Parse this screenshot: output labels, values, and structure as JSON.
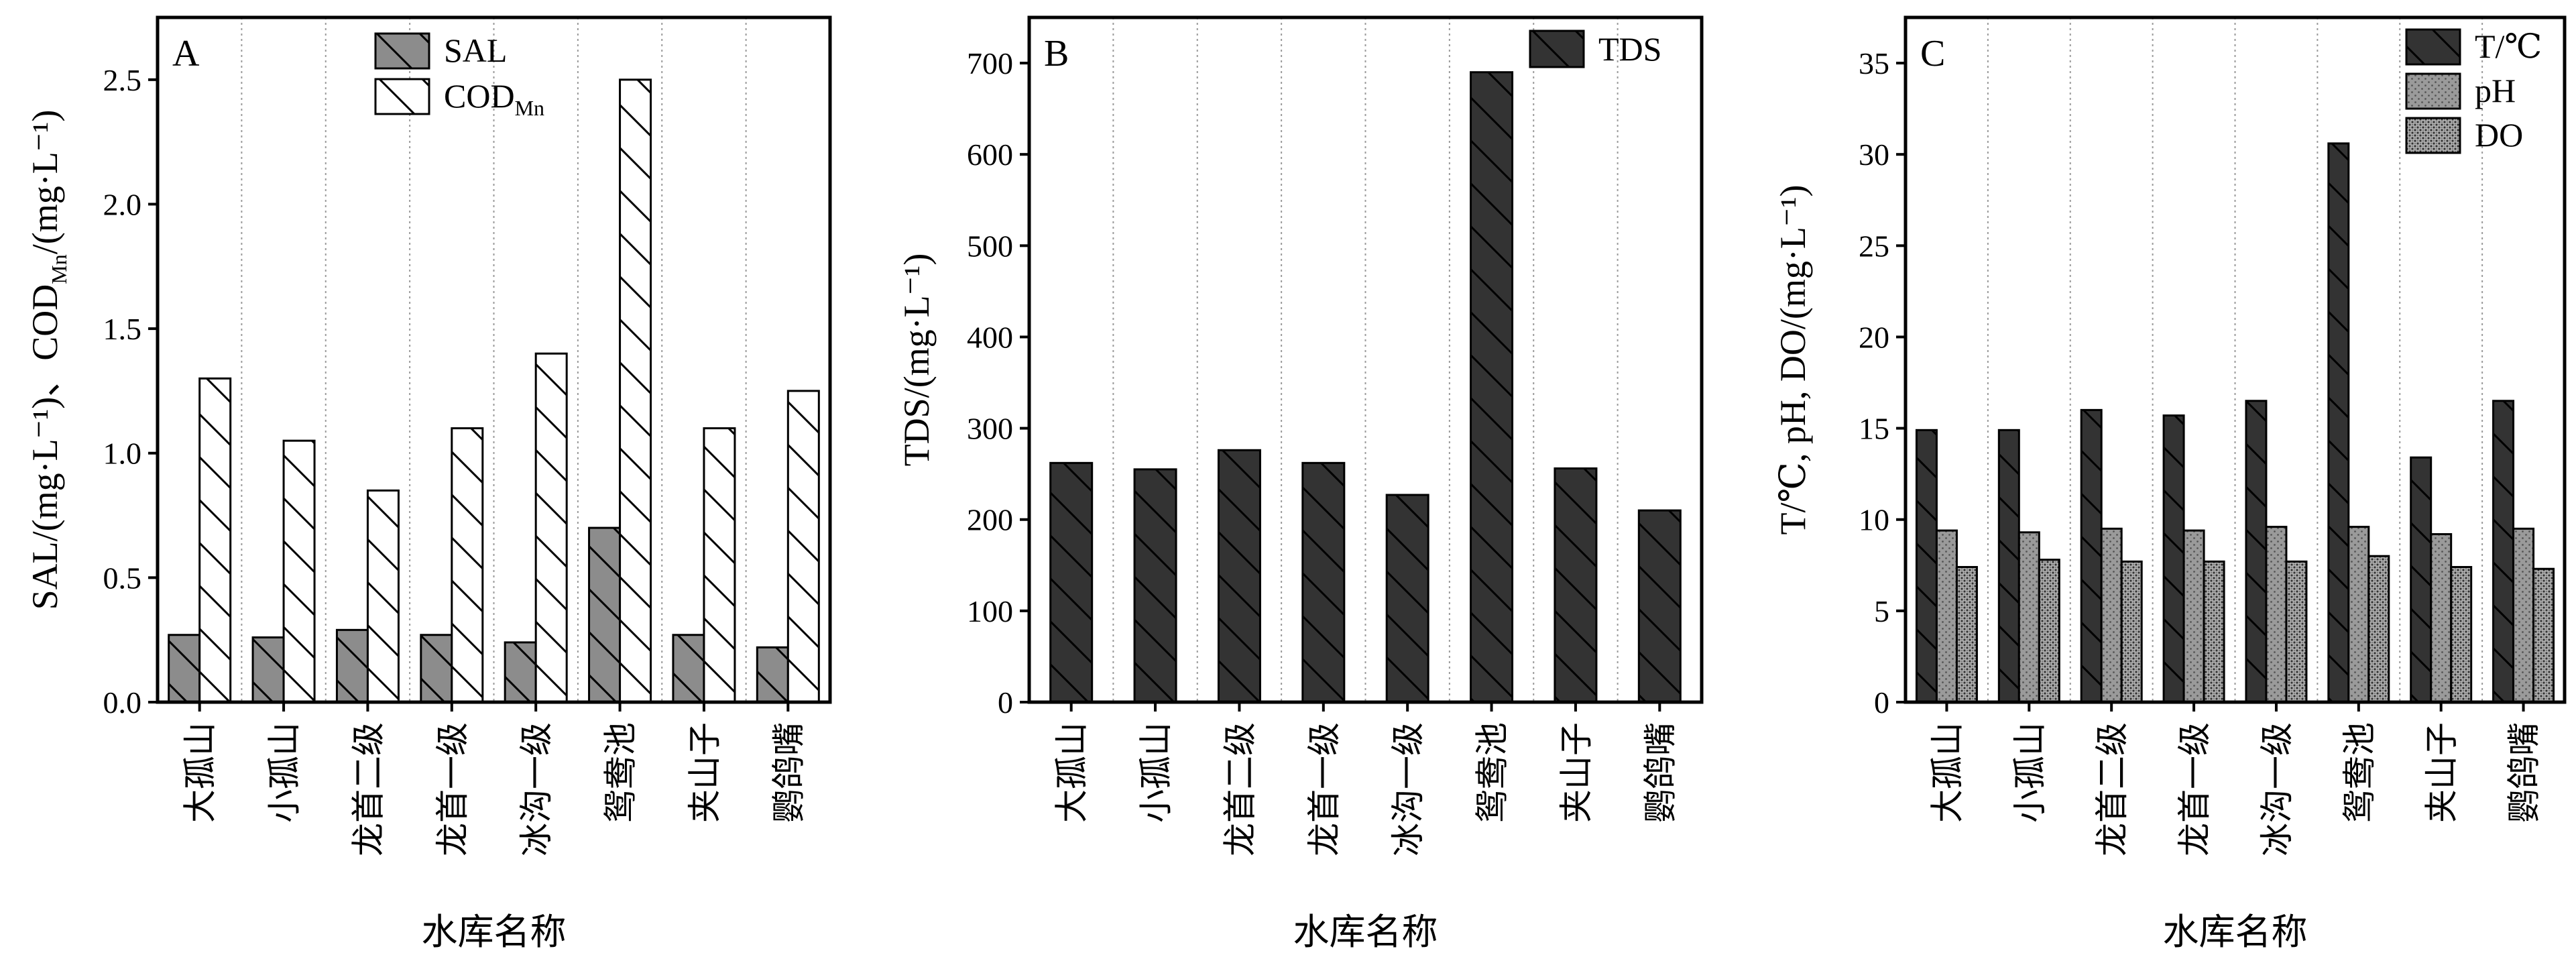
{
  "colors": {
    "dark": "#333333",
    "mid": "#8c8c8c",
    "white": "#ffffff",
    "axis": "#000000",
    "grid": "#9a9a9a"
  },
  "chart_data": [
    {
      "id": "A",
      "type": "bar",
      "panel_label": "A",
      "ylabel": "SAL/(mg·L⁻¹)、COD",
      "ylabel_sub": "Mn",
      "ylabel_tail": "/(mg·L⁻¹)",
      "xlabel": "水库名称",
      "categories": [
        "大孤山",
        "小孤山",
        "龙首二级",
        "龙首一级",
        "冰沟一级",
        "鸳鸯池",
        "夹山子",
        "鹦鸽嘴"
      ],
      "ylim": [
        0,
        2.75
      ],
      "yticks": [
        0.0,
        0.5,
        1.0,
        1.5,
        2.0,
        2.5
      ],
      "ytick_labels": [
        "0.0",
        "0.5",
        "1.0",
        "1.5",
        "2.0",
        "2.5"
      ],
      "grid": "vertical-dotted",
      "legend_position": "top-center",
      "series": [
        {
          "name": "SAL",
          "name_sub": "",
          "fill": "mid",
          "hatch": "backslash",
          "values": [
            0.27,
            0.26,
            0.29,
            0.27,
            0.24,
            0.7,
            0.27,
            0.22
          ]
        },
        {
          "name": "COD",
          "name_sub": "Mn",
          "fill": "white",
          "hatch": "backslash",
          "values": [
            1.3,
            1.05,
            0.85,
            1.1,
            1.4,
            2.5,
            1.1,
            1.25
          ]
        }
      ]
    },
    {
      "id": "B",
      "type": "bar",
      "panel_label": "B",
      "ylabel": "TDS/(mg·L⁻¹)",
      "ylabel_sub": "",
      "ylabel_tail": "",
      "xlabel": "水库名称",
      "categories": [
        "大孤山",
        "小孤山",
        "龙首二级",
        "龙首一级",
        "冰沟一级",
        "鸳鸯池",
        "夹山子",
        "鹦鸽嘴"
      ],
      "ylim": [
        0,
        750
      ],
      "yticks": [
        0,
        100,
        200,
        300,
        400,
        500,
        600,
        700
      ],
      "ytick_labels": [
        "0",
        "100",
        "200",
        "300",
        "400",
        "500",
        "600",
        "700"
      ],
      "grid": "vertical-dotted",
      "legend_position": "top-right",
      "series": [
        {
          "name": "TDS",
          "name_sub": "",
          "fill": "dark",
          "hatch": "backslash",
          "values": [
            262,
            255,
            276,
            262,
            227,
            690,
            256,
            210
          ]
        }
      ]
    },
    {
      "id": "C",
      "type": "bar",
      "panel_label": "C",
      "ylabel": "T/℃, pH, DO/(mg·L⁻¹)",
      "ylabel_sub": "",
      "ylabel_tail": "",
      "xlabel": "水库名称",
      "categories": [
        "大孤山",
        "小孤山",
        "龙首二级",
        "龙首一级",
        "冰沟一级",
        "鸳鸯池",
        "夹山子",
        "鹦鸽嘴"
      ],
      "ylim": [
        0,
        37.5
      ],
      "yticks": [
        0,
        5,
        10,
        15,
        20,
        25,
        30,
        35
      ],
      "ytick_labels": [
        "0",
        "5",
        "10",
        "15",
        "20",
        "25",
        "30",
        "35"
      ],
      "grid": "vertical-dotted",
      "legend_position": "top-right",
      "series": [
        {
          "name": "T/℃",
          "name_sub": "",
          "fill": "dark",
          "hatch": "backslash",
          "values": [
            14.9,
            14.9,
            16.0,
            15.7,
            16.5,
            30.6,
            13.4,
            16.5
          ]
        },
        {
          "name": "pH",
          "name_sub": "",
          "fill": "mid",
          "hatch": "dots",
          "values": [
            9.4,
            9.3,
            9.5,
            9.4,
            9.6,
            9.6,
            9.2,
            9.5
          ]
        },
        {
          "name": "DO",
          "name_sub": "",
          "fill": "mid",
          "hatch": "dense-dots",
          "values": [
            7.4,
            7.8,
            7.7,
            7.7,
            7.7,
            8.0,
            7.4,
            7.3
          ]
        }
      ]
    }
  ]
}
